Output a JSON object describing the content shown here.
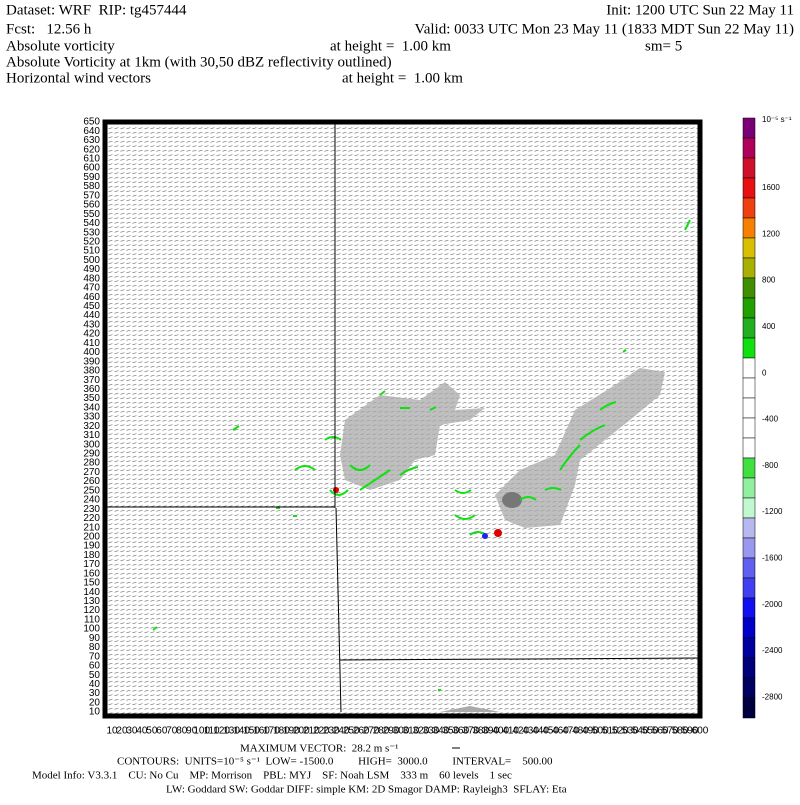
{
  "header": {
    "dataset": "Dataset: WRF  RIP: tg457444",
    "init": "Init: 1200 UTC Sun 22 May 11",
    "fcst": "Fcst:   12.56 h",
    "valid": "Valid: 0033 UTC Mon 23 May 11 (1833 MDT Sun 22 May 11)",
    "field1": "Absolute vorticity",
    "field1_height": "at height =  1.00 km",
    "smoothing": "sm= 5",
    "field2": "Absolute Vorticity at 1km (with 30,50 dBZ reflectivity outlined)",
    "field3": "Horizontal wind vectors",
    "field3_height": "at height =  1.00 km"
  },
  "y_axis": {
    "labels": [
      10,
      20,
      30,
      40,
      50,
      60,
      70,
      80,
      90,
      100,
      110,
      120,
      130,
      140,
      150,
      160,
      170,
      180,
      190,
      200,
      210,
      220,
      230,
      240,
      250,
      260,
      270,
      280,
      290,
      300,
      310,
      320,
      330,
      340,
      350,
      360,
      370,
      380,
      390,
      400,
      410,
      420,
      430,
      440,
      450,
      460,
      470,
      480,
      490,
      500,
      510,
      520,
      530,
      540,
      550,
      560,
      570,
      580,
      590,
      600,
      610,
      620,
      630,
      640,
      650
    ]
  },
  "x_axis": {
    "labels": [
      10,
      20,
      30,
      40,
      50,
      60,
      70,
      80,
      90,
      100,
      110,
      120,
      130,
      140,
      150,
      160,
      170,
      180,
      190,
      200,
      210,
      220,
      230,
      240,
      250,
      260,
      270,
      280,
      290,
      300,
      310,
      320,
      330,
      340,
      350,
      360,
      370,
      380,
      390,
      400,
      410,
      420,
      430,
      440,
      450,
      460,
      470,
      480,
      490,
      500,
      510,
      520,
      530,
      540,
      550,
      560,
      570,
      580,
      590,
      600
    ]
  },
  "colorbar": {
    "unit": "10⁻⁵ s⁻¹",
    "labels": [
      "1600",
      "1200",
      "800",
      "400",
      "0",
      "-400",
      "-800",
      "-1200",
      "-1600",
      "-2000",
      "-2400",
      "-2800"
    ],
    "colors": [
      "#7a0077",
      "#b0005a",
      "#d0102a",
      "#e81010",
      "#f04010",
      "#f88000",
      "#d8c000",
      "#a8b000",
      "#3f8f00",
      "#22a000",
      "#20b020",
      "#10e010",
      "#ffffff",
      "#ffffff",
      "#ffffff",
      "#ffffff",
      "#ffffff",
      "#40e040",
      "#90f0a0",
      "#c0f8d0",
      "#b8b8f0",
      "#9898f0",
      "#6060f0",
      "#4040f0",
      "#1010f0",
      "#0000c8",
      "#0000a0",
      "#00007a",
      "#000060",
      "#000040"
    ]
  },
  "footer": {
    "max_vector": "MAXIMUM VECTOR:  28.2 m s⁻¹",
    "contours": "CONTOURS:  UNITS=10⁻⁵ s⁻¹  LOW= -1500.0         HIGH=  3000.0         INTERVAL=    500.00",
    "model_info": "Model Info: V3.3.1    CU: No Cu    MP: Morrison    PBL: MYJ    SF: Noah LSM    333 m    60 levels    1 sec",
    "physics": "LW: Goddard SW: Goddar DIFF: simple KM: 2D Smagor DAMP: Rayleigh3  SFLAY: Eta"
  }
}
